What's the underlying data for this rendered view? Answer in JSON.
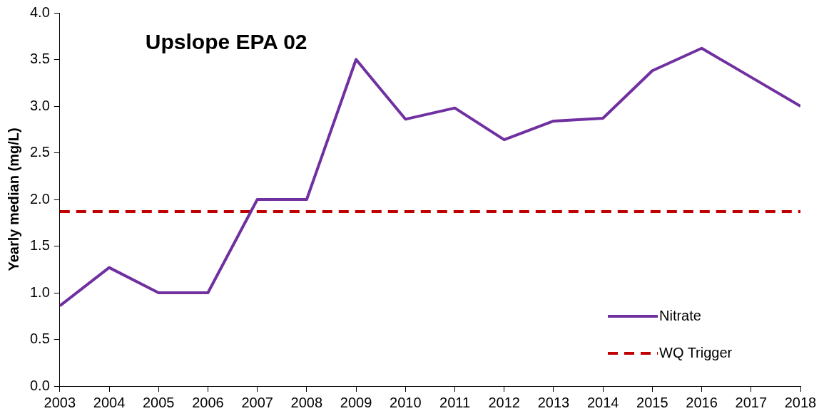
{
  "chart_data": {
    "type": "line",
    "title": "Upslope EPA 02",
    "ylabel": "Yearly median (mg/L)",
    "x": [
      2003,
      2004,
      2005,
      2006,
      2007,
      2008,
      2009,
      2010,
      2011,
      2012,
      2013,
      2014,
      2015,
      2016,
      2017,
      2018
    ],
    "series": [
      {
        "name": "Nitrate",
        "color": "#7030a0",
        "line_style": "solid",
        "values": [
          0.86,
          1.27,
          1.0,
          1.0,
          2.0,
          2.0,
          3.5,
          2.86,
          2.98,
          2.64,
          2.84,
          2.87,
          3.38,
          3.62,
          3.31,
          3.0
        ]
      },
      {
        "name": "WQ Trigger",
        "color": "#c00000",
        "line_style": "dashed",
        "values": [
          1.87,
          1.87,
          1.87,
          1.87,
          1.87,
          1.87,
          1.87,
          1.87,
          1.87,
          1.87,
          1.87,
          1.87,
          1.87,
          1.87,
          1.87,
          1.87
        ]
      }
    ],
    "xlim": [
      2003,
      2018
    ],
    "xticks": [
      2003,
      2004,
      2005,
      2006,
      2007,
      2008,
      2009,
      2010,
      2011,
      2012,
      2013,
      2014,
      2015,
      2016,
      2017,
      2018
    ],
    "ylim": [
      0,
      4
    ],
    "yticks": [
      {
        "value": 0,
        "label": "0.0"
      },
      {
        "value": 0.5,
        "label": "0.5"
      },
      {
        "value": 1,
        "label": "1.0"
      },
      {
        "value": 1.5,
        "label": "1.5"
      },
      {
        "value": 2,
        "label": "2.0"
      },
      {
        "value": 2.5,
        "label": "2.5"
      },
      {
        "value": 3,
        "label": "3.0"
      },
      {
        "value": 3.5,
        "label": "3.5"
      },
      {
        "value": 4,
        "label": "4.0"
      }
    ],
    "grid": false,
    "legend": "bottom right",
    "marker": "none"
  }
}
